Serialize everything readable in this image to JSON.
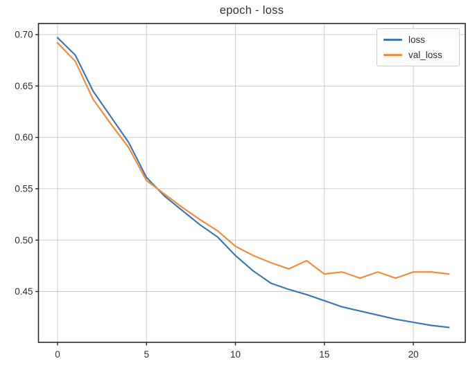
{
  "chart_data": {
    "type": "line",
    "title": "epoch - loss",
    "xlabel": "",
    "ylabel": "",
    "x": [
      0,
      1,
      2,
      3,
      4,
      5,
      6,
      7,
      8,
      9,
      10,
      11,
      12,
      13,
      14,
      15,
      16,
      17,
      18,
      19,
      20,
      21,
      22
    ],
    "series": [
      {
        "name": "loss",
        "color": "#3b79b8",
        "values": [
          0.697,
          0.68,
          0.645,
          0.62,
          0.595,
          0.561,
          0.543,
          0.529,
          0.515,
          0.503,
          0.485,
          0.47,
          0.458,
          0.452,
          0.447,
          0.441,
          0.435,
          0.431,
          0.427,
          0.423,
          0.42,
          0.417,
          0.415
        ]
      },
      {
        "name": "val_loss",
        "color": "#f78b37",
        "values": [
          0.692,
          0.674,
          0.637,
          0.613,
          0.59,
          0.558,
          0.545,
          0.532,
          0.52,
          0.509,
          0.494,
          0.485,
          0.478,
          0.472,
          0.48,
          0.467,
          0.469,
          0.463,
          0.469,
          0.463,
          0.469,
          0.469,
          0.467
        ]
      }
    ],
    "xlim": [
      -1.07,
      22.92
    ],
    "ylim": [
      0.4005,
      0.7108
    ],
    "xticks": [
      {
        "v": 0,
        "label": "0"
      },
      {
        "v": 5,
        "label": "5"
      },
      {
        "v": 10,
        "label": "10"
      },
      {
        "v": 15,
        "label": "15"
      },
      {
        "v": 20,
        "label": "20"
      }
    ],
    "yticks": [
      {
        "v": 0.7,
        "label": "0.70"
      },
      {
        "v": 0.65,
        "label": "0.65"
      },
      {
        "v": 0.6,
        "label": "0.60"
      },
      {
        "v": 0.55,
        "label": "0.55"
      },
      {
        "v": 0.5,
        "label": "0.50"
      },
      {
        "v": 0.45,
        "label": "0.45"
      }
    ],
    "grid": true,
    "legend": {
      "position": "upper right"
    },
    "style": {
      "grid_color": "#cccccc",
      "spine_color": "#2a2a2a",
      "tick_label_color": "#2e2e2e",
      "title_color": "#333333",
      "background": "#ffffff"
    }
  }
}
